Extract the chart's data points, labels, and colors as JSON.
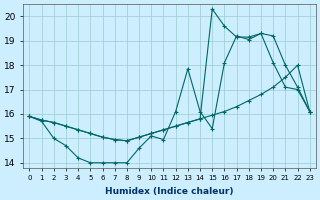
{
  "xlabel": "Humidex (Indice chaleur)",
  "bg_color": "#cceeff",
  "line_color": "#006666",
  "xlim": [
    -0.5,
    23.5
  ],
  "ylim": [
    13.8,
    20.5
  ],
  "xticks": [
    0,
    1,
    2,
    3,
    4,
    5,
    6,
    7,
    8,
    9,
    10,
    11,
    12,
    13,
    14,
    15,
    16,
    17,
    18,
    19,
    20,
    21,
    22,
    23
  ],
  "yticks": [
    14,
    15,
    16,
    17,
    18,
    19,
    20
  ],
  "line1_x": [
    0,
    1,
    2,
    3,
    4,
    5,
    6,
    7,
    8,
    9,
    10,
    11,
    12,
    13,
    14,
    15,
    16,
    17,
    18,
    19,
    20,
    21,
    22,
    23
  ],
  "line1_y": [
    15.9,
    15.75,
    15.65,
    15.5,
    15.35,
    15.2,
    15.05,
    14.95,
    14.9,
    15.05,
    15.2,
    15.35,
    15.5,
    15.65,
    15.8,
    15.95,
    16.1,
    16.3,
    16.55,
    16.8,
    17.1,
    17.5,
    18.0,
    16.1
  ],
  "line2_x": [
    0,
    1,
    2,
    3,
    4,
    5,
    6,
    7,
    8,
    9,
    10,
    11,
    12,
    13,
    14,
    15,
    16,
    17,
    18,
    19,
    20,
    21,
    22,
    23
  ],
  "line2_y": [
    15.9,
    15.7,
    15.0,
    14.7,
    14.2,
    14.0,
    14.0,
    14.0,
    14.0,
    14.6,
    15.1,
    14.95,
    16.1,
    17.85,
    16.1,
    15.4,
    18.1,
    19.2,
    19.05,
    19.3,
    18.1,
    17.1,
    17.0,
    16.1
  ],
  "line3_x": [
    0,
    1,
    2,
    3,
    4,
    5,
    6,
    7,
    8,
    9,
    10,
    11,
    12,
    13,
    14,
    15,
    16,
    17,
    18,
    19,
    20,
    21,
    22,
    23
  ],
  "line3_y": [
    15.9,
    15.75,
    15.65,
    15.5,
    15.35,
    15.2,
    15.05,
    14.95,
    14.9,
    15.05,
    15.2,
    15.35,
    15.5,
    15.65,
    15.8,
    20.3,
    19.6,
    19.15,
    19.15,
    19.3,
    19.2,
    18.0,
    17.1,
    16.1
  ]
}
